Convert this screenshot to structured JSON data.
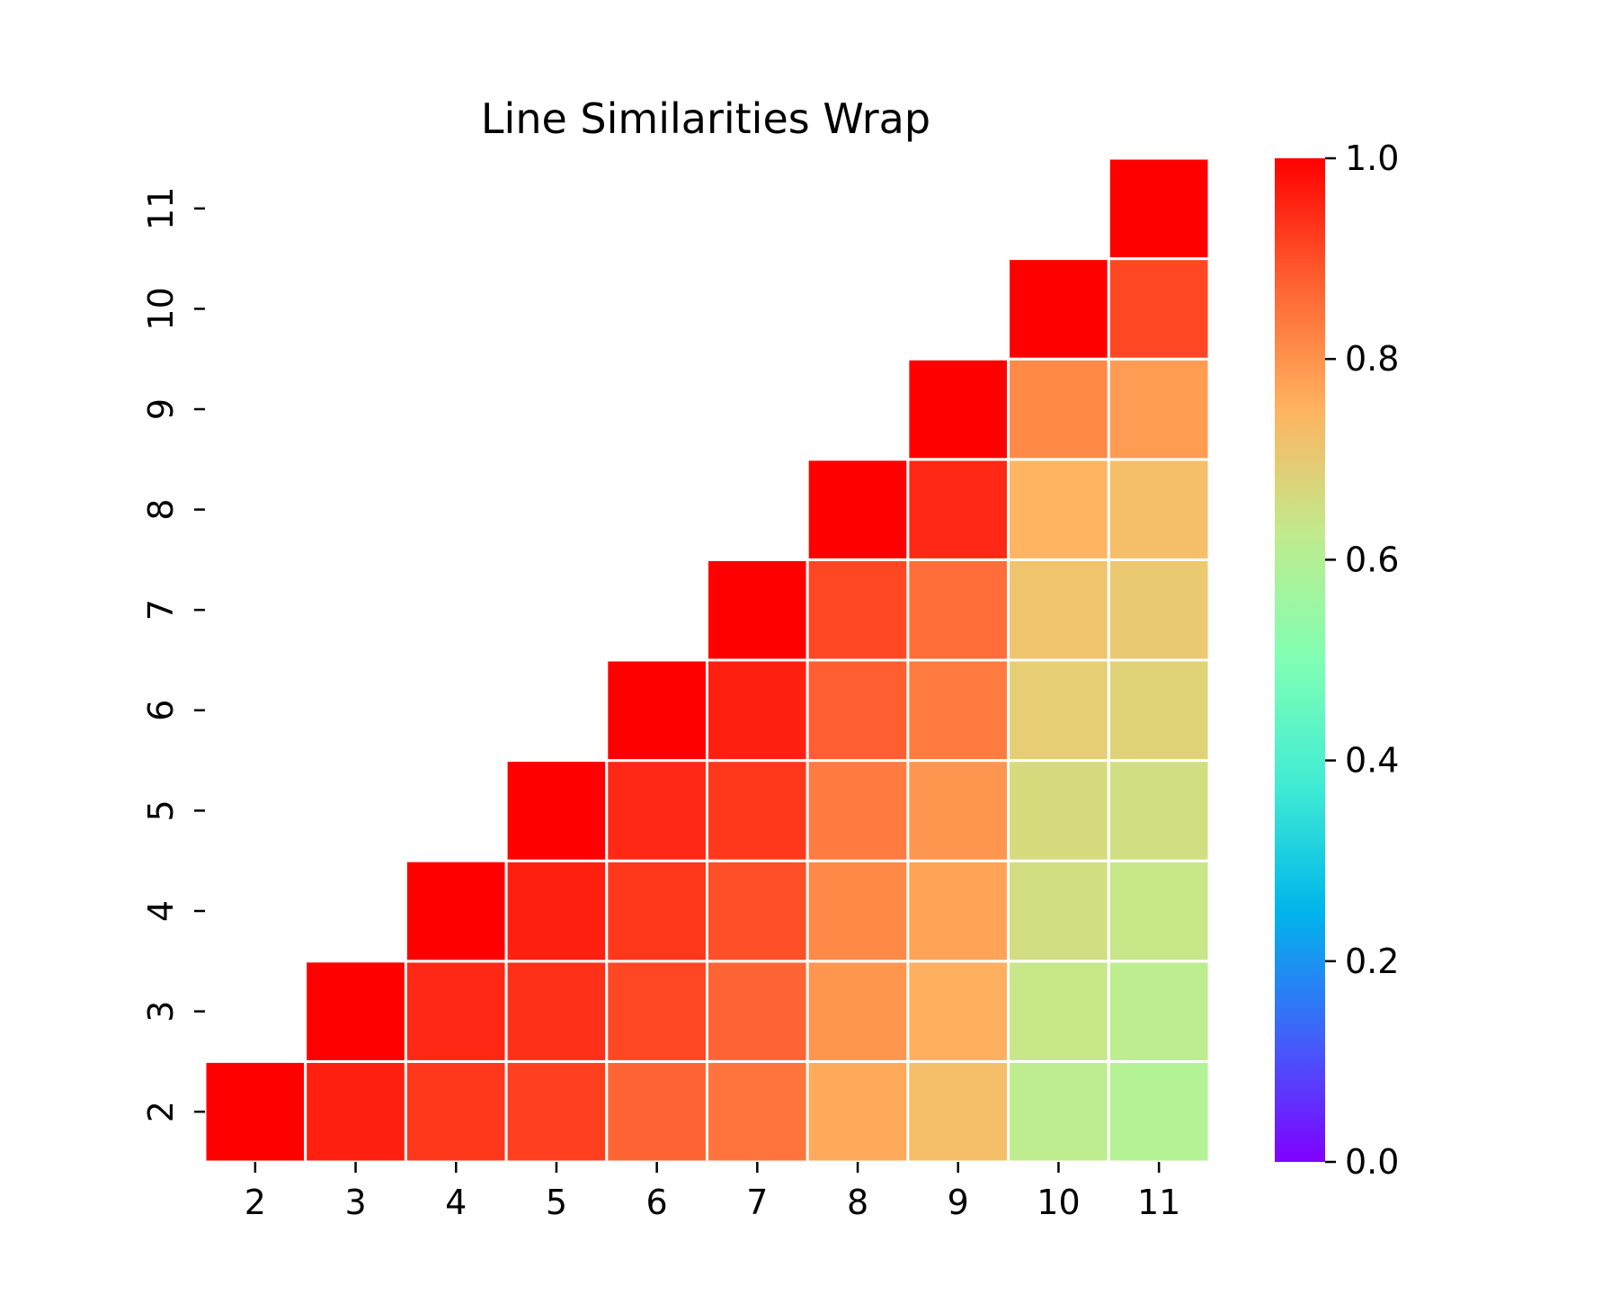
{
  "chart_data": {
    "type": "heatmap",
    "title": "Line Similarities Wrap",
    "xlabel": "",
    "ylabel": "",
    "colormap": "rainbow",
    "x_categories": [
      "2",
      "3",
      "4",
      "5",
      "6",
      "7",
      "8",
      "9",
      "10",
      "11"
    ],
    "y_categories": [
      "2",
      "3",
      "4",
      "5",
      "6",
      "7",
      "8",
      "9",
      "10",
      "11"
    ],
    "mask": "upper triangle shown (column >= row)",
    "matrix": [
      [
        1.0,
        0.96,
        0.93,
        0.92,
        0.87,
        0.85,
        0.77,
        0.73,
        0.62,
        0.6
      ],
      [
        null,
        1.0,
        0.95,
        0.94,
        0.91,
        0.87,
        0.8,
        0.76,
        0.64,
        0.62
      ],
      [
        null,
        null,
        1.0,
        0.96,
        0.93,
        0.9,
        0.82,
        0.78,
        0.66,
        0.64
      ],
      [
        null,
        null,
        null,
        1.0,
        0.95,
        0.93,
        0.84,
        0.8,
        0.67,
        0.66
      ],
      [
        null,
        null,
        null,
        null,
        1.0,
        0.96,
        0.88,
        0.84,
        0.7,
        0.69
      ],
      [
        null,
        null,
        null,
        null,
        null,
        1.0,
        0.91,
        0.86,
        0.72,
        0.71
      ],
      [
        null,
        null,
        null,
        null,
        null,
        null,
        1.0,
        0.95,
        0.75,
        0.73
      ],
      [
        null,
        null,
        null,
        null,
        null,
        null,
        null,
        1.0,
        0.82,
        0.79
      ],
      [
        null,
        null,
        null,
        null,
        null,
        null,
        null,
        null,
        1.0,
        0.91
      ],
      [
        null,
        null,
        null,
        null,
        null,
        null,
        null,
        null,
        null,
        1.0
      ]
    ],
    "colorbar": {
      "range": [
        0.0,
        1.0
      ],
      "ticks": [
        0.0,
        0.2,
        0.4,
        0.6,
        0.8,
        1.0
      ],
      "tick_labels": [
        "0.0",
        "0.2",
        "0.4",
        "0.6",
        "0.8",
        "1.0"
      ]
    },
    "grid": false
  }
}
